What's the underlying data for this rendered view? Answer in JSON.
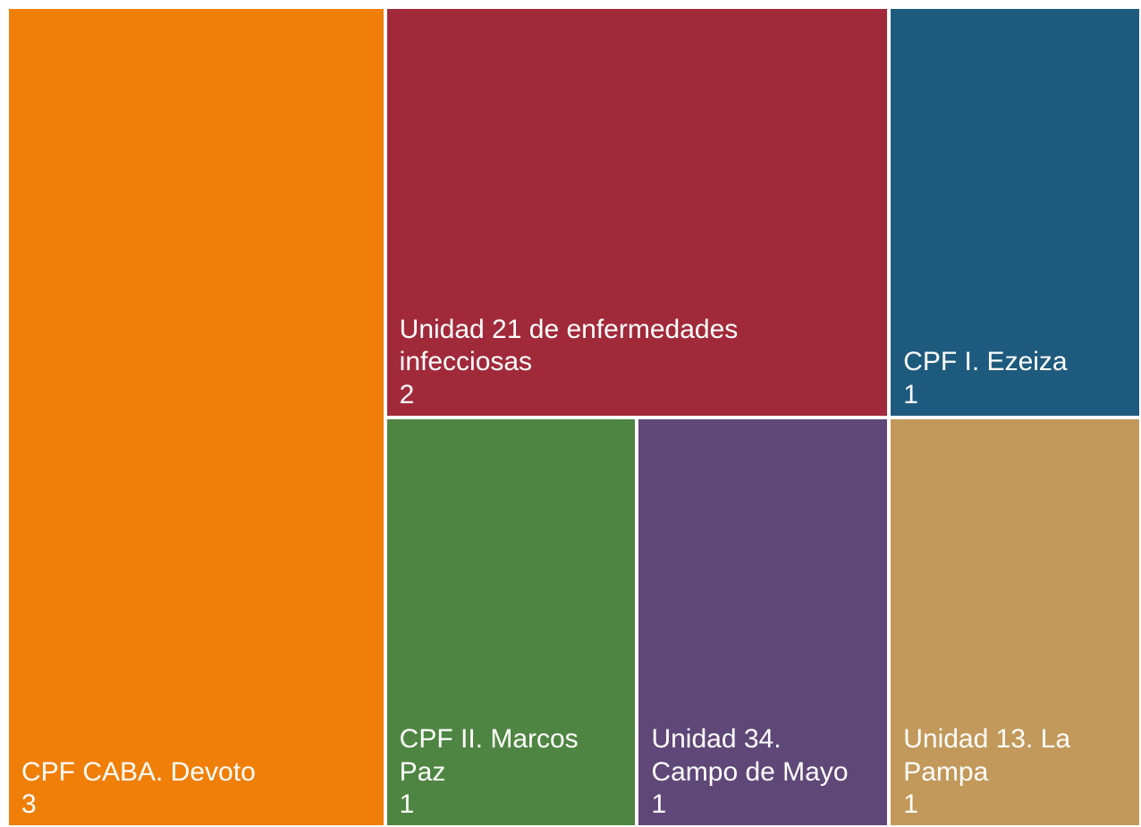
{
  "chart_data": {
    "type": "treemap",
    "categories": [
      "CPF CABA. Devoto",
      "Unidad 21 de enfermedades infecciosas",
      "CPF I. Ezeiza",
      "CPF II. Marcos Paz",
      "Unidad 34. Campo de Mayo",
      "Unidad 13. La Pampa"
    ],
    "values": [
      3,
      2,
      1,
      1,
      1,
      1
    ],
    "colors": [
      "#f07f09",
      "#a12a3a",
      "#1e5a7d",
      "#4e8542",
      "#5f4878",
      "#c2995b"
    ]
  }
}
